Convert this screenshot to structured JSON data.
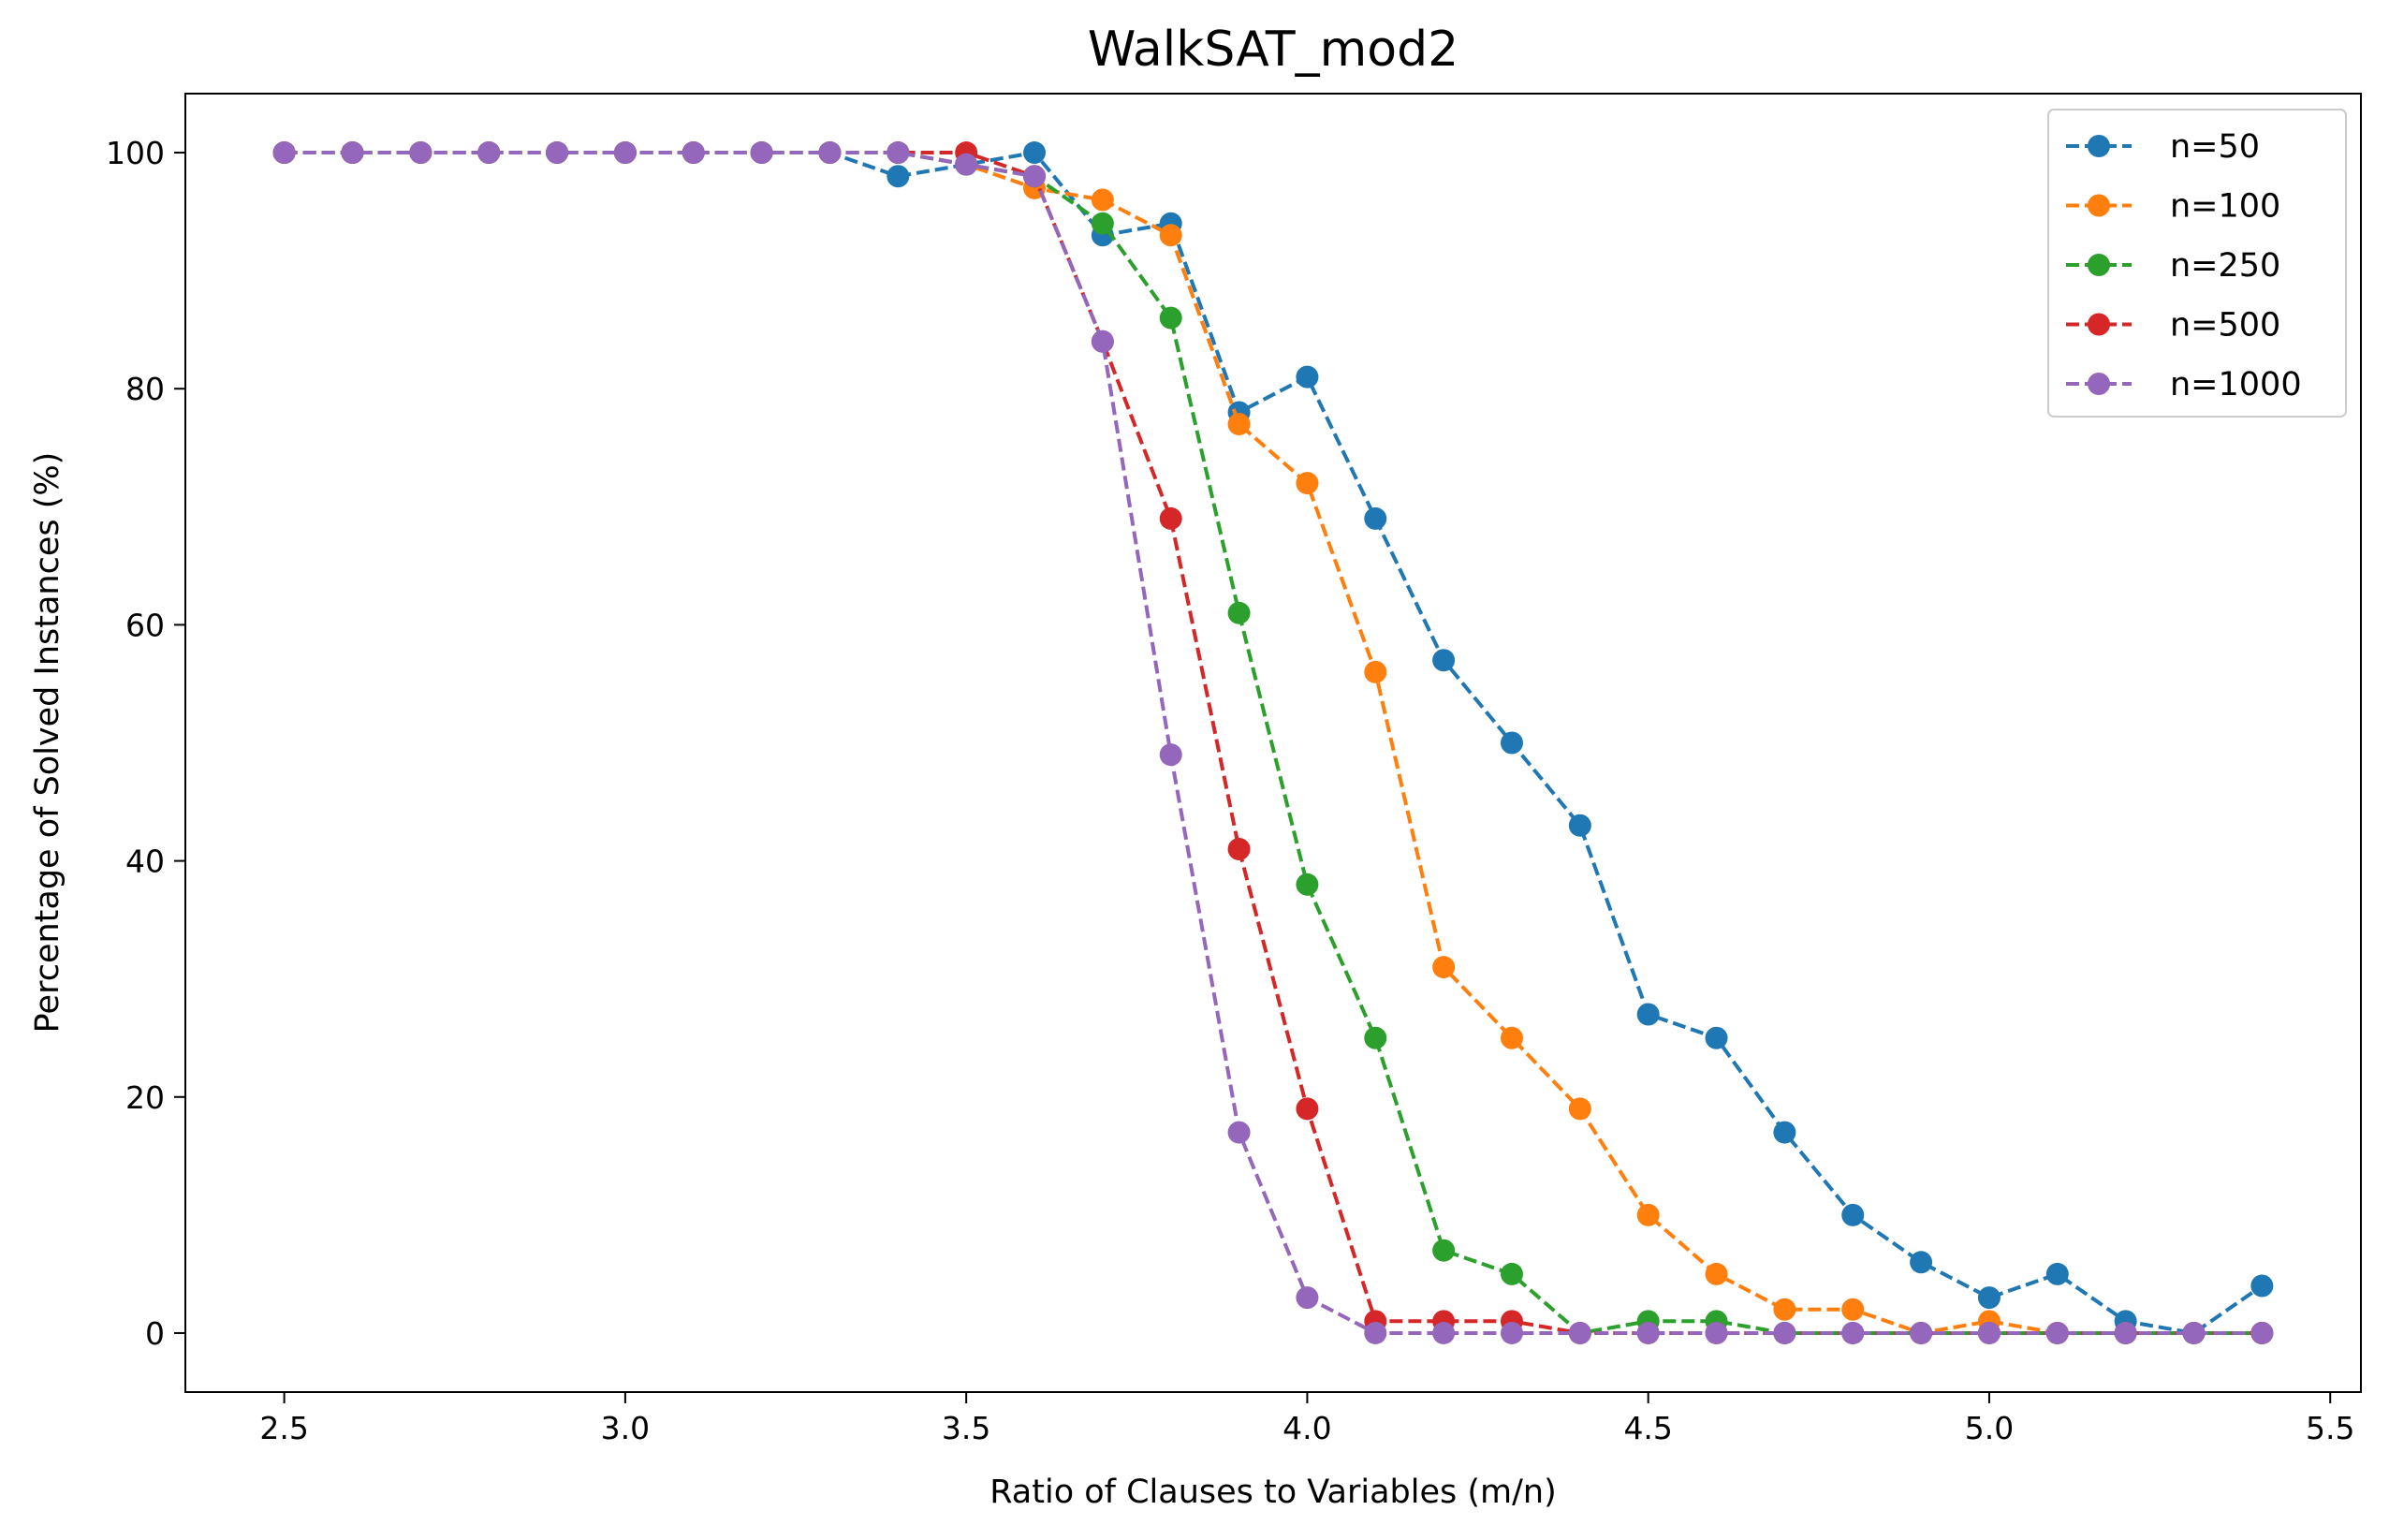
{
  "chart_data": {
    "type": "line",
    "title": "WalkSAT_mod2",
    "xlabel": "Ratio of Clauses to Variables (m/n)",
    "ylabel": "Percentage of Solved Instances (%)",
    "xlim": [
      2.355,
      5.545
    ],
    "ylim": [
      -5,
      105
    ],
    "xticks": [
      "2.5",
      "3.0",
      "3.5",
      "4.0",
      "4.5",
      "5.0",
      "5.5"
    ],
    "xtick_values": [
      2.5,
      3.0,
      3.5,
      4.0,
      4.5,
      5.0,
      5.5
    ],
    "yticks": [
      "0",
      "20",
      "40",
      "60",
      "80",
      "100"
    ],
    "ytick_values": [
      0,
      20,
      40,
      60,
      80,
      100
    ],
    "grid": false,
    "legend_position": "top-right",
    "line_style": "dashed",
    "marker": "circle",
    "x": [
      2.5,
      2.6,
      2.7,
      2.8,
      2.9,
      3.0,
      3.1,
      3.2,
      3.3,
      3.4,
      3.5,
      3.6,
      3.7,
      3.8,
      3.9,
      4.0,
      4.1,
      4.2,
      4.3,
      4.4,
      4.5,
      4.6,
      4.7,
      4.8,
      4.9,
      5.0,
      5.1,
      5.2,
      5.3,
      5.4
    ],
    "series": [
      {
        "name": "n=50",
        "color": "#1f77b4",
        "values": [
          100,
          100,
          100,
          100,
          100,
          100,
          100,
          100,
          100,
          98,
          99,
          100,
          93,
          94,
          78,
          81,
          69,
          57,
          50,
          43,
          27,
          25,
          17,
          10,
          6,
          3,
          5,
          1,
          0,
          4
        ]
      },
      {
        "name": "n=100",
        "color": "#ff7f0e",
        "values": [
          100,
          100,
          100,
          100,
          100,
          100,
          100,
          100,
          100,
          100,
          99,
          97,
          96,
          93,
          77,
          72,
          56,
          31,
          25,
          19,
          10,
          5,
          2,
          2,
          0,
          1,
          0,
          0,
          0,
          0
        ]
      },
      {
        "name": "n=250",
        "color": "#2ca02c",
        "values": [
          100,
          100,
          100,
          100,
          100,
          100,
          100,
          100,
          100,
          100,
          99,
          98,
          94,
          86,
          61,
          38,
          25,
          7,
          5,
          0,
          1,
          1,
          0,
          0,
          0,
          0,
          0,
          0,
          0,
          0
        ]
      },
      {
        "name": "n=500",
        "color": "#d62728",
        "values": [
          100,
          100,
          100,
          100,
          100,
          100,
          100,
          100,
          100,
          100,
          100,
          98,
          84,
          69,
          41,
          19,
          1,
          1,
          1,
          0,
          0,
          0,
          0,
          0,
          0,
          0,
          0,
          0,
          0,
          0
        ]
      },
      {
        "name": "n=1000",
        "color": "#9467bd",
        "values": [
          100,
          100,
          100,
          100,
          100,
          100,
          100,
          100,
          100,
          100,
          99,
          98,
          84,
          49,
          17,
          3,
          0,
          0,
          0,
          0,
          0,
          0,
          0,
          0,
          0,
          0,
          0,
          0,
          0,
          0
        ]
      }
    ]
  }
}
